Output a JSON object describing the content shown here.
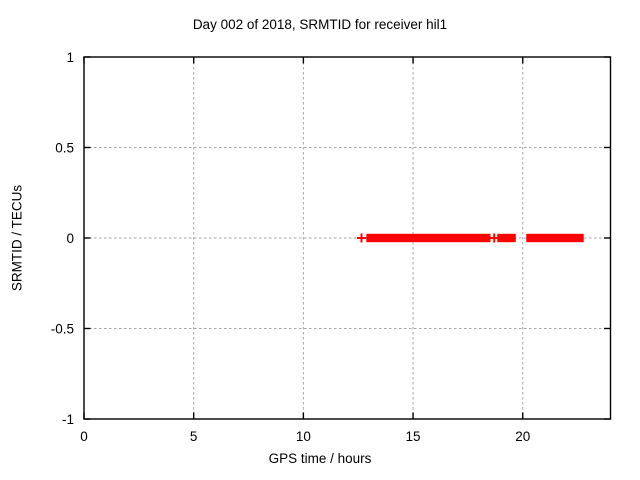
{
  "window": {
    "background_color": "#ffffff"
  },
  "chart_data": {
    "type": "scatter",
    "title": "Day 002 of 2018, SRMTID for receiver hil1",
    "xlabel": "GPS time / hours",
    "ylabel": "SRMTID / TECUs",
    "xlim": [
      0,
      24
    ],
    "ylim": [
      -1,
      1
    ],
    "xticks": [
      0,
      5,
      10,
      15,
      20
    ],
    "yticks": [
      -1,
      -0.5,
      0,
      0.5,
      1
    ],
    "grid": true,
    "legend_position": "none",
    "colors": {
      "series": "#ff0000",
      "grid": "#a6a6a6",
      "border": "#000000",
      "text": "#000000"
    },
    "series": [
      {
        "name": "SRMTID",
        "marker": "plus",
        "color": "#ff0000",
        "y_value": 0,
        "dense_segments_hours": [
          [
            12.87,
            18.53
          ],
          [
            18.84,
            19.68
          ],
          [
            20.16,
            22.78
          ]
        ],
        "isolated_points_hours": [
          12.65,
          18.7
        ]
      }
    ]
  }
}
